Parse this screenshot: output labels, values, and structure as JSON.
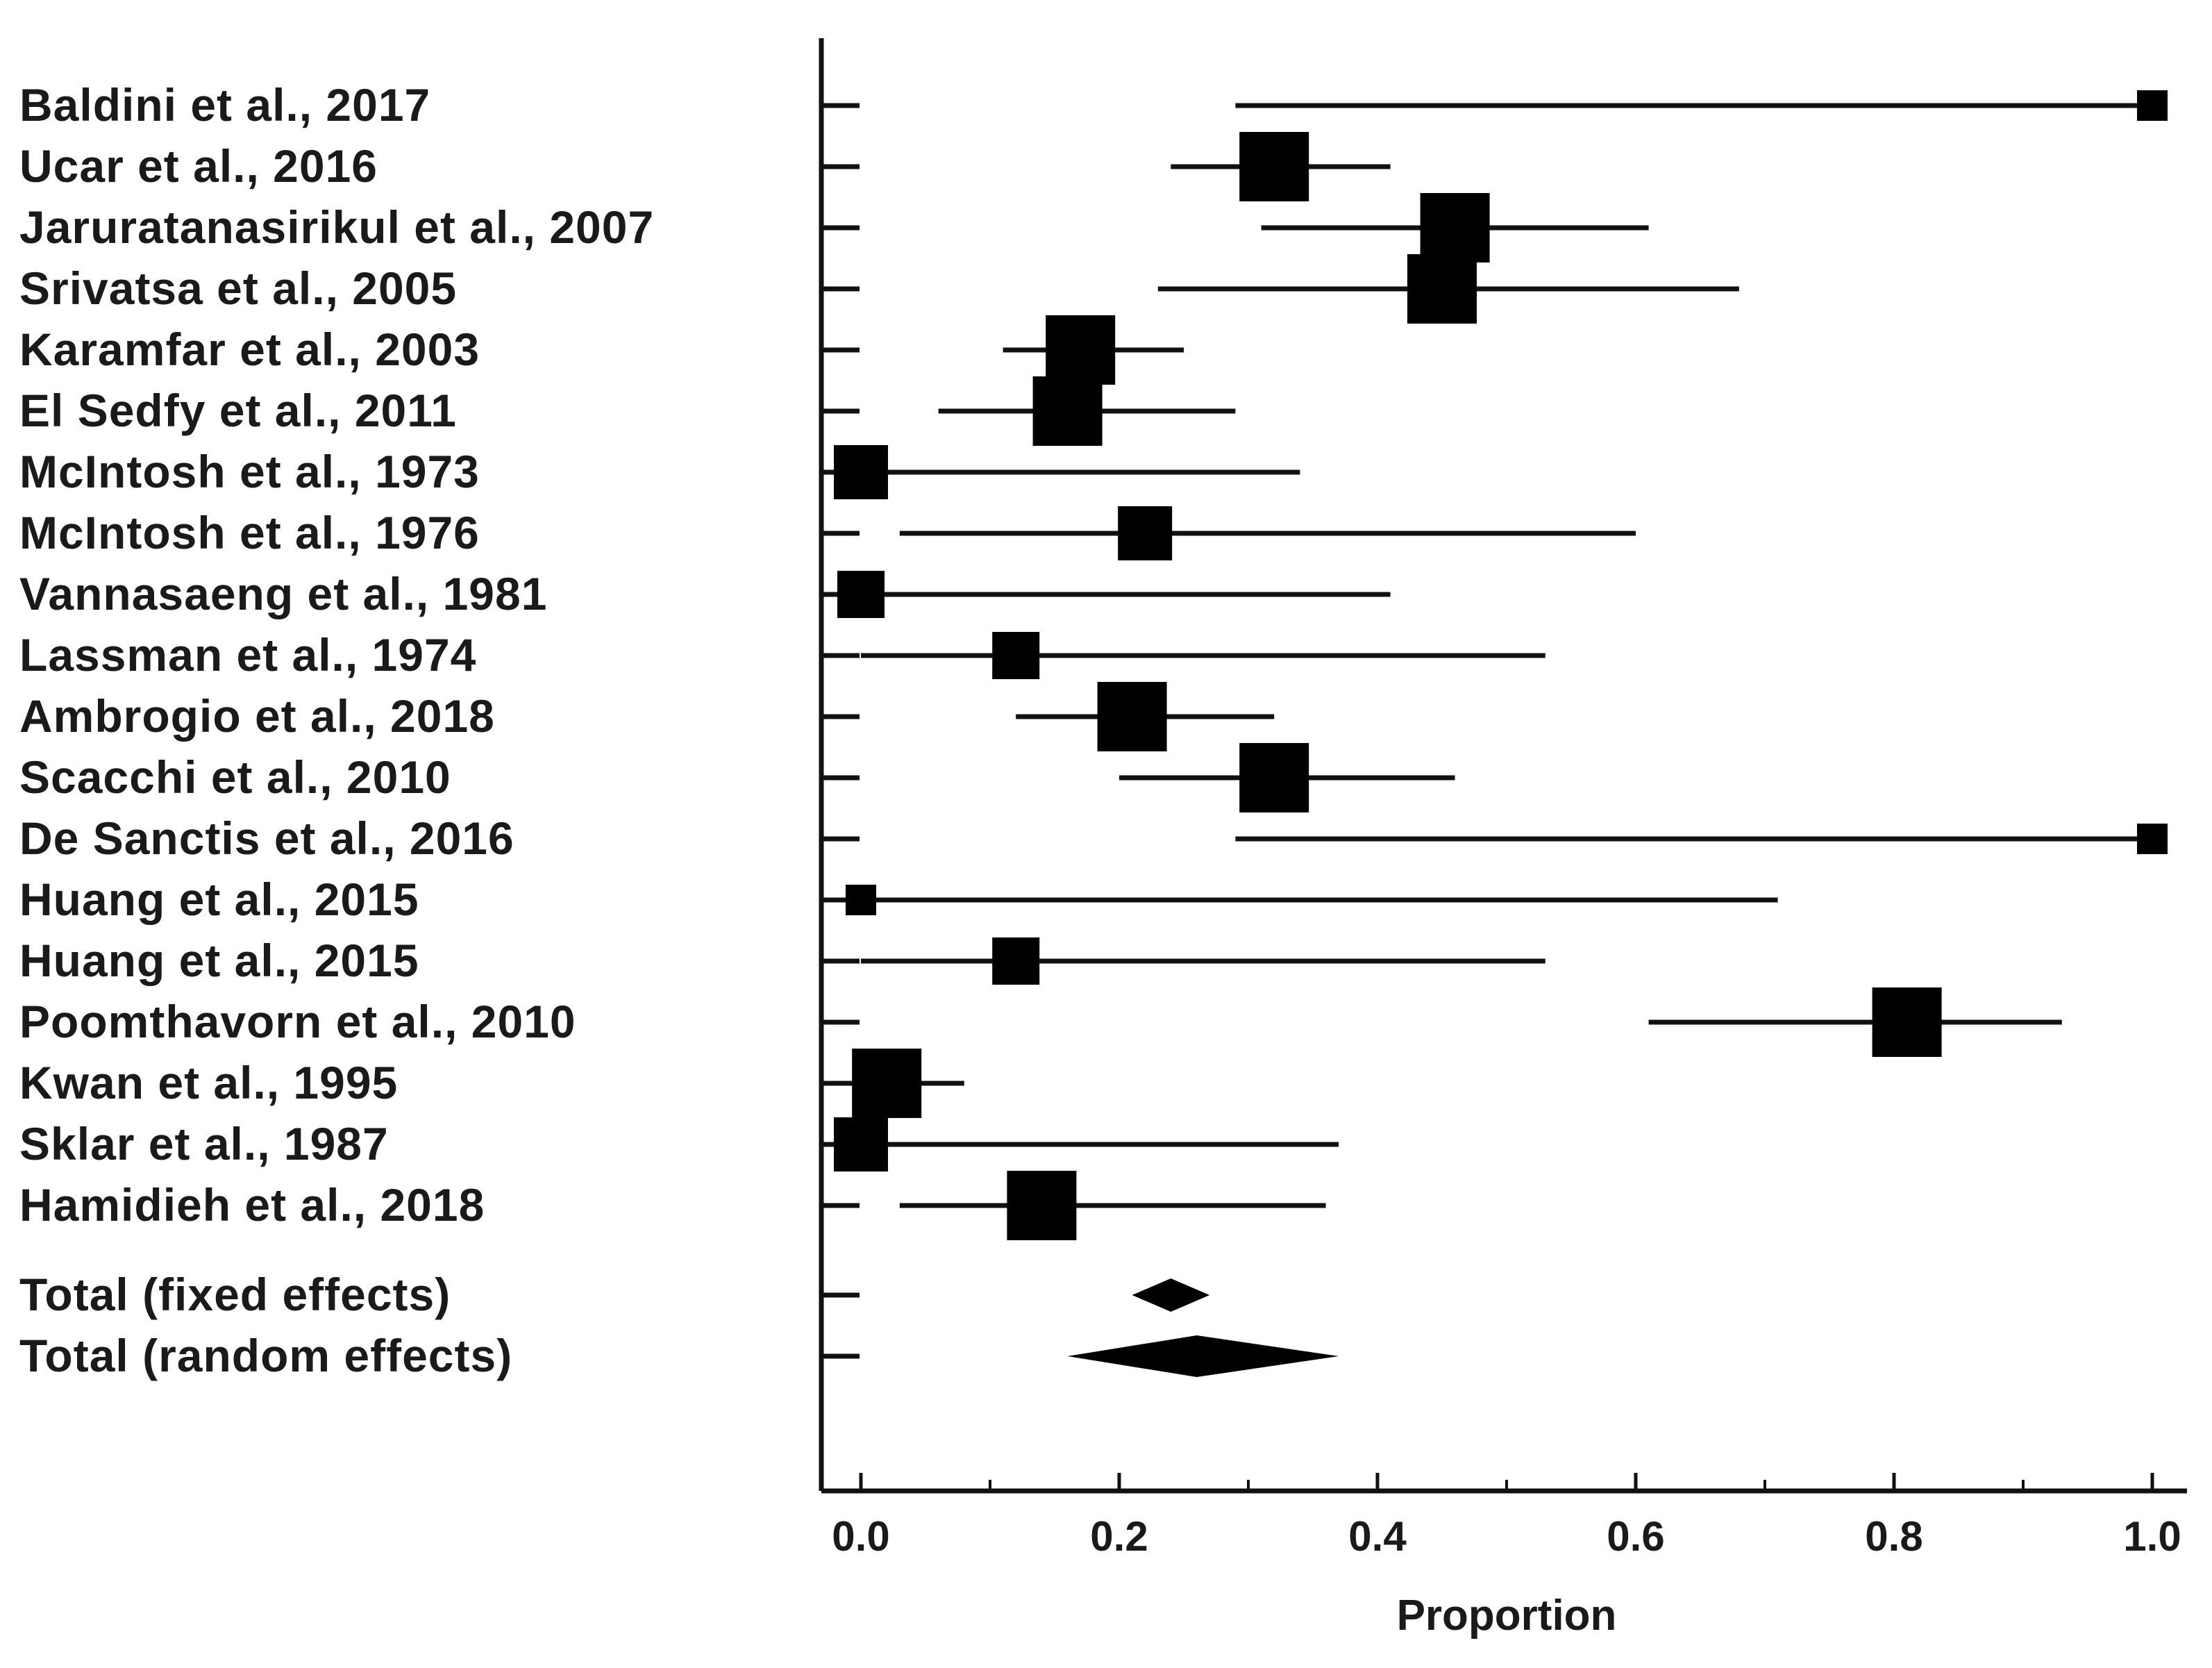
{
  "chart_data": {
    "type": "forest",
    "xlabel": "Proportion",
    "xlim": [
      -0.03,
      1.03
    ],
    "xticks": [
      0.0,
      0.2,
      0.4,
      0.6,
      0.8,
      1.0
    ],
    "xtick_labels": [
      "0.0",
      "0.2",
      "0.4",
      "0.6",
      "0.8",
      "1.0"
    ],
    "studies": [
      {
        "label": "Baldini et al., 2017",
        "estimate": 1.0,
        "ci": [
          0.29,
          1.0
        ],
        "weight": "small"
      },
      {
        "label": "Ucar et al., 2016",
        "estimate": 0.32,
        "ci": [
          0.24,
          0.41
        ],
        "weight": "large"
      },
      {
        "label": "Jaruratanasirikul et al., 2007",
        "estimate": 0.46,
        "ci": [
          0.31,
          0.61
        ],
        "weight": "large"
      },
      {
        "label": "Srivatsa et al., 2005",
        "estimate": 0.45,
        "ci": [
          0.23,
          0.68
        ],
        "weight": "large"
      },
      {
        "label": "Karamfar et al., 2003",
        "estimate": 0.17,
        "ci": [
          0.11,
          0.25
        ],
        "weight": "large"
      },
      {
        "label": "El Sedfy et al., 2011",
        "estimate": 0.16,
        "ci": [
          0.06,
          0.29
        ],
        "weight": "large"
      },
      {
        "label": "McIntosh et al., 1973",
        "estimate": 0.0,
        "ci": [
          0.0,
          0.34
        ],
        "weight": "medium"
      },
      {
        "label": "McIntosh et al., 1976",
        "estimate": 0.22,
        "ci": [
          0.03,
          0.6
        ],
        "weight": "medium"
      },
      {
        "label": "Vannasaeng et al., 1981",
        "estimate": 0.0,
        "ci": [
          0.0,
          0.41
        ],
        "weight": "small-medium"
      },
      {
        "label": "Lassman et al., 1974",
        "estimate": 0.12,
        "ci": [
          0.0,
          0.53
        ],
        "weight": "small-medium"
      },
      {
        "label": "Ambrogio et al., 2018",
        "estimate": 0.21,
        "ci": [
          0.12,
          0.32
        ],
        "weight": "large"
      },
      {
        "label": "Scacchi et al., 2010",
        "estimate": 0.32,
        "ci": [
          0.2,
          0.46
        ],
        "weight": "large"
      },
      {
        "label": "De Sanctis et al., 2016",
        "estimate": 1.0,
        "ci": [
          0.29,
          1.0
        ],
        "weight": "small"
      },
      {
        "label": "Huang et al., 2015",
        "estimate": 0.0,
        "ci": [
          0.0,
          0.71
        ],
        "weight": "small"
      },
      {
        "label": "Huang et al., 2015",
        "estimate": 0.12,
        "ci": [
          0.0,
          0.53
        ],
        "weight": "small-medium"
      },
      {
        "label": "Poomthavorn et al., 2010",
        "estimate": 0.81,
        "ci": [
          0.61,
          0.93
        ],
        "weight": "large"
      },
      {
        "label": "Kwan et al., 1995",
        "estimate": 0.02,
        "ci": [
          0.0,
          0.08
        ],
        "weight": "large"
      },
      {
        "label": "Sklar et al., 1987",
        "estimate": 0.0,
        "ci": [
          0.0,
          0.37
        ],
        "weight": "medium"
      },
      {
        "label": "Hamidieh et al., 2018",
        "estimate": 0.14,
        "ci": [
          0.03,
          0.36
        ],
        "weight": "large"
      }
    ],
    "totals": [
      {
        "label": "Total (fixed effects)",
        "estimate": 0.24,
        "ci": [
          0.21,
          0.27
        ]
      },
      {
        "label": "Total (random effects)",
        "estimate": 0.26,
        "ci": [
          0.16,
          0.37
        ]
      }
    ]
  }
}
